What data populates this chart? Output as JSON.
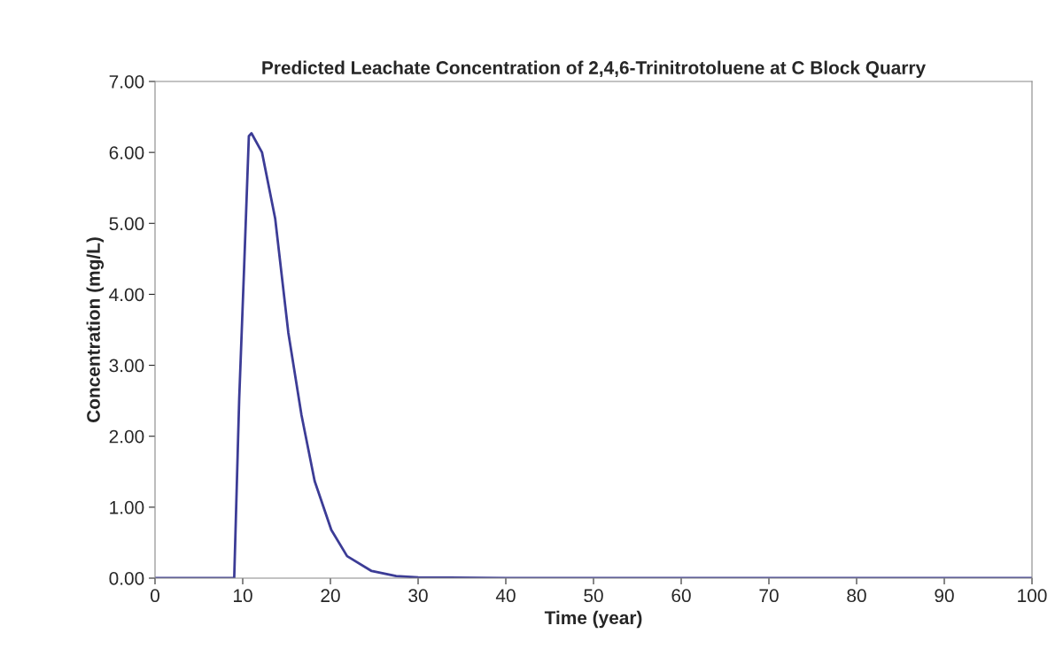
{
  "chart_data": {
    "type": "line",
    "title": "Predicted Leachate Concentration of 2,4,6-Trinitrotoluene at C Block Quarry",
    "xlabel": "Time (year)",
    "ylabel": "Concentration (mg/L)",
    "series": [
      {
        "color": "#3c3c96",
        "x": [
          0,
          8.6,
          9.03,
          9.6,
          10.16,
          10.7,
          11.0,
          12.2,
          13.7,
          15.2,
          16.7,
          18.2,
          20.1,
          21.9,
          24.7,
          27.5,
          30,
          40,
          60,
          80,
          100
        ],
        "values": [
          0,
          0,
          0,
          2.53,
          4.38,
          6.23,
          6.27,
          6.0,
          5.07,
          3.46,
          2.3,
          1.37,
          0.68,
          0.31,
          0.1,
          0.03,
          0.01,
          0,
          0,
          0,
          0
        ]
      }
    ],
    "xlim": [
      0,
      100
    ],
    "xticks": [
      0,
      10,
      20,
      30,
      40,
      50,
      60,
      70,
      80,
      90,
      100
    ],
    "ylim": [
      0,
      7
    ],
    "yticks": [
      {
        "value": 0,
        "label": "0.00"
      },
      {
        "value": 1,
        "label": "1.00"
      },
      {
        "value": 2,
        "label": "2.00"
      },
      {
        "value": 3,
        "label": "3.00"
      },
      {
        "value": 4,
        "label": "4.00"
      },
      {
        "value": 5,
        "label": "5.00"
      },
      {
        "value": 6,
        "label": "6.00"
      },
      {
        "value": 7,
        "label": "7.00"
      }
    ],
    "grid": false,
    "legend": false,
    "marker": "none",
    "line_style": "solid"
  }
}
